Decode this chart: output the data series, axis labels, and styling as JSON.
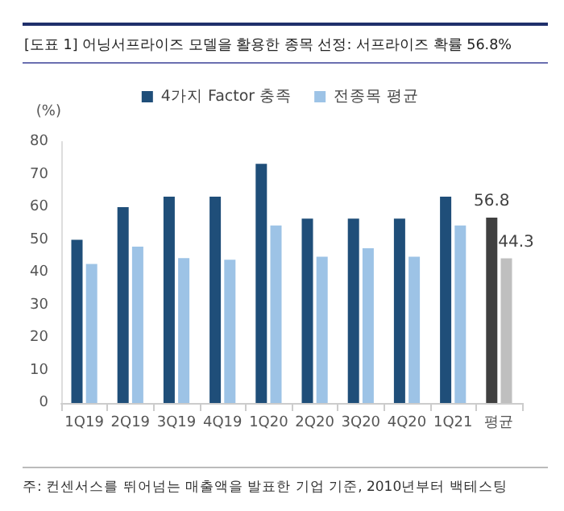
{
  "chart_data": {
    "type": "bar",
    "title": "[도표 1] 어닝서프라이즈 모델을 활용한 종목 선정: 서프라이즈 확률 56.8%",
    "ylabel": "(%)",
    "categories": [
      "1Q19",
      "2Q19",
      "3Q19",
      "4Q19",
      "1Q20",
      "2Q20",
      "3Q20",
      "4Q20",
      "1Q21",
      "평균"
    ],
    "series": [
      {
        "name": "4가지 Factor 충족",
        "color": "#1f4e79",
        "colors": [
          "#1f4e79",
          "#1f4e79",
          "#1f4e79",
          "#1f4e79",
          "#1f4e79",
          "#1f4e79",
          "#1f4e79",
          "#1f4e79",
          "#1f4e79",
          "#404040"
        ],
        "values": [
          50,
          60,
          63.2,
          63.2,
          73.3,
          56.5,
          56.5,
          56.5,
          63.2,
          56.8
        ],
        "value_labels": [
          null,
          null,
          null,
          null,
          null,
          null,
          null,
          null,
          null,
          "56.8"
        ]
      },
      {
        "name": "전종목 평균",
        "color": "#9dc3e6",
        "colors": [
          "#9dc3e6",
          "#9dc3e6",
          "#9dc3e6",
          "#9dc3e6",
          "#9dc3e6",
          "#9dc3e6",
          "#9dc3e6",
          "#9dc3e6",
          "#9dc3e6",
          "#bfbfbf"
        ],
        "values": [
          42.6,
          47.9,
          44.4,
          43.9,
          54.4,
          44.8,
          47.4,
          44.8,
          54.4,
          44.3
        ],
        "value_labels": [
          null,
          null,
          null,
          null,
          null,
          null,
          null,
          null,
          null,
          "44.3"
        ]
      }
    ],
    "ylim": [
      0,
      80
    ],
    "yticks": [
      0,
      10,
      20,
      30,
      40,
      50,
      60,
      70,
      80
    ],
    "grid": false,
    "legend": "top",
    "annotations": [
      "주: 컨센서스를 뛰어넘는 매출액을 발표한 기업 기준, 2010년부터 백테스팅"
    ]
  }
}
